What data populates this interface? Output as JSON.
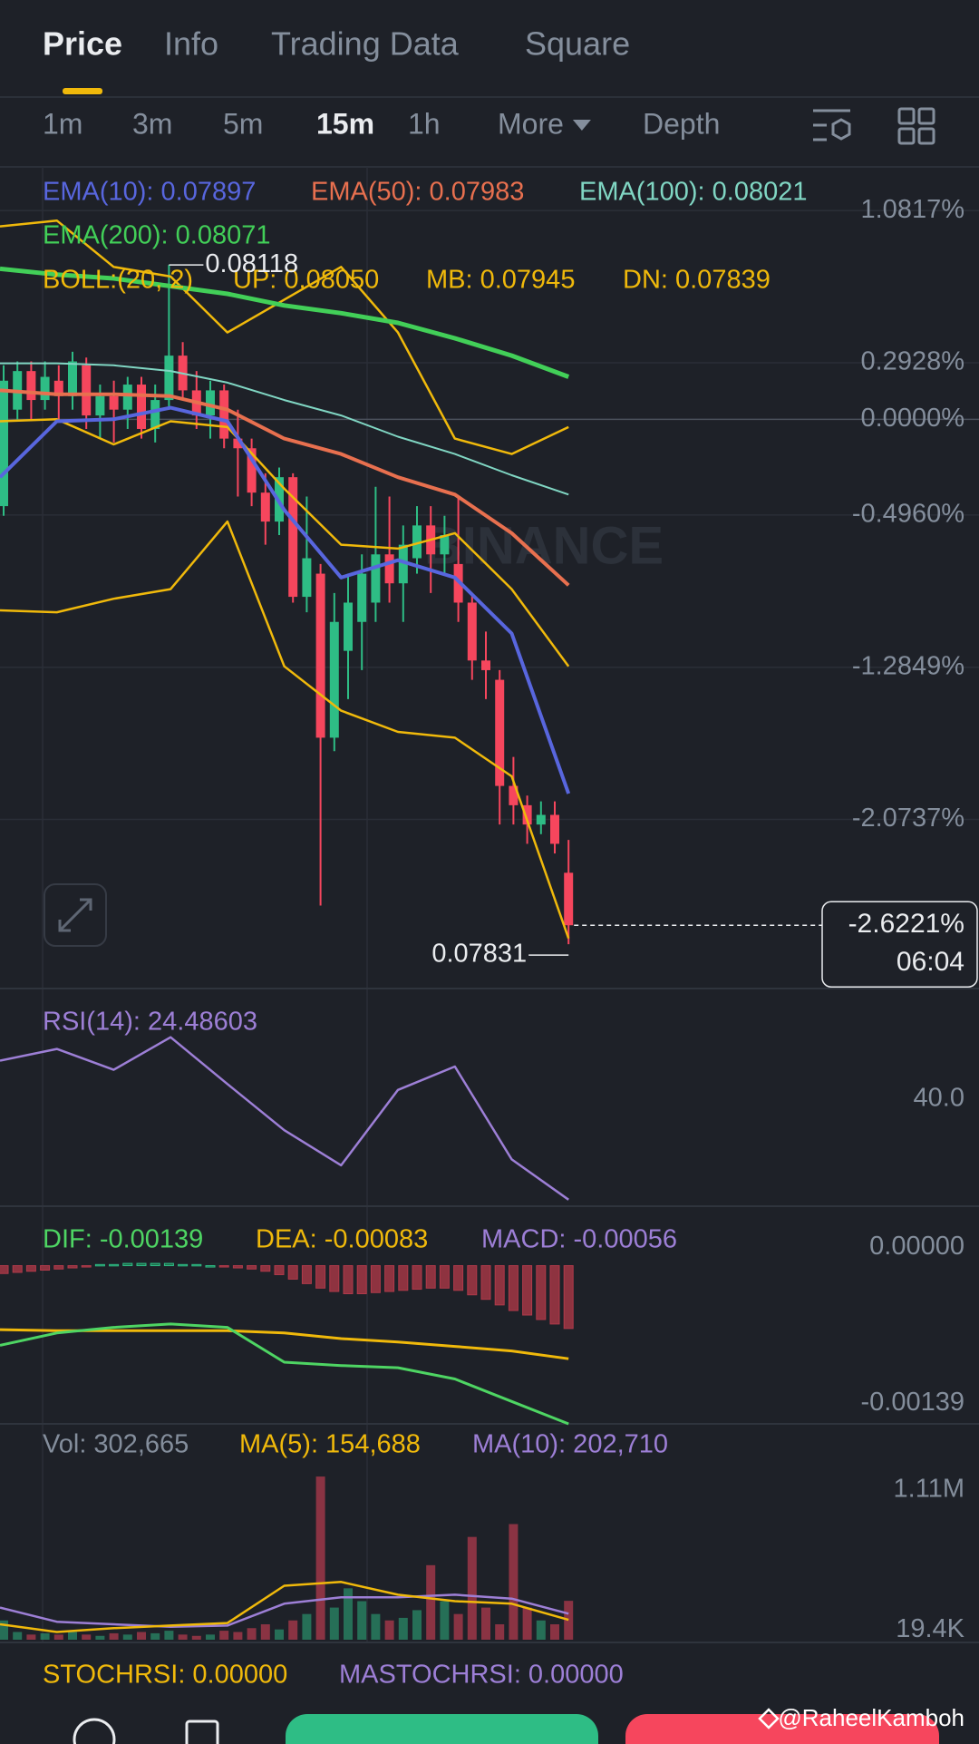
{
  "tabs": {
    "items": [
      "Price",
      "Info",
      "Trading Data",
      "Square"
    ],
    "active": 0
  },
  "intervals": {
    "items": [
      "1m",
      "3m",
      "5m",
      "15m",
      "1h",
      "More",
      "Depth"
    ],
    "active": 3
  },
  "price_panel": {
    "ylim": [
      -2.95,
      1.28
    ],
    "yticks": [
      {
        "value": 1.0817,
        "label": "1.0817%"
      },
      {
        "value": 0.2928,
        "label": "0.2928%"
      },
      {
        "value": 0,
        "label": "0.0000%"
      },
      {
        "value": -0.496,
        "label": "-0.4960%"
      },
      {
        "value": -1.2849,
        "label": "-1.2849%"
      },
      {
        "value": -2.0737,
        "label": "-2.0737%"
      }
    ],
    "candles": {
      "up_color": "#2ebd85",
      "down_color": "#f6465d",
      "open": [
        -0.45,
        0.05,
        0.25,
        0.1,
        0.2,
        0.12,
        0.28,
        0.02,
        0.12,
        0.05,
        0.18,
        -0.05,
        0.1,
        0.33,
        0.15,
        0.02,
        0.15,
        -0.1,
        -0.15,
        -0.38,
        -0.53,
        -0.3,
        -0.92,
        -0.8,
        -1.65,
        -1.2,
        -1.05,
        -0.95,
        -0.7,
        -0.85,
        -0.72,
        -0.55,
        -0.7,
        -0.75,
        -0.95,
        -1.25,
        -1.35,
        -1.9,
        -2.0,
        -2.1,
        -2.05,
        -2.35
      ],
      "high": [
        0.28,
        0.3,
        0.3,
        0.3,
        0.28,
        0.35,
        0.32,
        0.18,
        0.2,
        0.22,
        0.22,
        0.18,
        0.8,
        0.4,
        0.25,
        0.2,
        0.18,
        0.05,
        -0.1,
        -0.28,
        -0.25,
        -0.28,
        -0.4,
        -0.75,
        -0.9,
        -0.8,
        -0.7,
        -0.35,
        -0.4,
        -0.55,
        -0.45,
        -0.45,
        -0.5,
        -0.4,
        -0.9,
        -1.1,
        -1.3,
        -1.75,
        -1.95,
        -1.98,
        -1.98,
        -2.18
      ],
      "low": [
        -0.5,
        0.0,
        0.0,
        0.05,
        0.0,
        0.05,
        -0.05,
        -0.1,
        -0.12,
        -0.05,
        -0.1,
        -0.12,
        0.05,
        0.1,
        -0.05,
        -0.1,
        -0.15,
        -0.4,
        -0.45,
        -0.65,
        -0.6,
        -0.95,
        -1.0,
        -2.52,
        -1.72,
        -1.45,
        -1.3,
        -1.05,
        -0.95,
        -1.05,
        -0.8,
        -0.9,
        -0.8,
        -1.05,
        -1.35,
        -1.45,
        -2.1,
        -2.1,
        -2.2,
        -2.15,
        -2.25,
        -2.72
      ],
      "close": [
        0.2,
        0.25,
        0.1,
        0.22,
        0.12,
        0.3,
        0.02,
        0.12,
        0.05,
        0.18,
        -0.05,
        0.1,
        0.33,
        0.15,
        0.02,
        0.15,
        -0.1,
        -0.15,
        -0.38,
        -0.53,
        -0.3,
        -0.92,
        -0.72,
        -1.65,
        -1.05,
        -0.95,
        -0.8,
        -0.7,
        -0.85,
        -0.65,
        -0.55,
        -0.7,
        -0.6,
        -0.95,
        -1.25,
        -1.3,
        -1.9,
        -2.0,
        -2.1,
        -2.05,
        -2.2,
        -2.6221
      ]
    },
    "ema": [
      {
        "label": "EMA(10): 0.07897",
        "color": "#5866de",
        "width": 4,
        "values": [
          -0.3,
          -0.01,
          0,
          0.06,
          -0.01,
          -0.47,
          -0.82,
          -0.73,
          -0.82,
          -1.11,
          -1.94
        ]
      },
      {
        "label": "EMA(50): 0.07983",
        "color": "#e8704f",
        "width": 4,
        "values": [
          0.15,
          0.13,
          0.13,
          0.12,
          0.05,
          -0.1,
          -0.18,
          -0.3,
          -0.39,
          -0.59,
          -0.86
        ]
      },
      {
        "label": "EMA(100): 0.08021",
        "color": "#80d6c3",
        "width": 2,
        "values": [
          0.29,
          0.29,
          0.28,
          0.25,
          0.19,
          0.1,
          0.02,
          -0.09,
          -0.18,
          -0.29,
          -0.39
        ]
      },
      {
        "label": "EMA(200): 0.08071",
        "color": "#42cf58",
        "width": 5,
        "values": [
          0.78,
          0.75,
          0.73,
          0.69,
          0.65,
          0.59,
          0.55,
          0.5,
          0.42,
          0.33,
          0.22
        ]
      }
    ],
    "boll": {
      "label": "BOLL:(20, 2)",
      "color": "#f0b90b",
      "bands": [
        {
          "label": "UP: 0.08050",
          "values": [
            1.0,
            1.03,
            0.79,
            0.74,
            0.45,
            0.62,
            0.79,
            0.45,
            -0.1,
            -0.18,
            -0.04
          ]
        },
        {
          "label": "MB: 0.07945",
          "values": [
            -0.01,
            0,
            -0.13,
            -0.01,
            -0.04,
            -0.36,
            -0.65,
            -0.67,
            -0.59,
            -0.88,
            -1.28
          ]
        },
        {
          "label": "DN: 0.07839",
          "values": [
            -0.99,
            -1.0,
            -0.93,
            -0.88,
            -0.53,
            -1.28,
            -1.51,
            -1.62,
            -1.65,
            -1.85,
            -2.69
          ]
        }
      ]
    },
    "high_label": "0.08118",
    "low_label": "0.07831",
    "last_price": {
      "value": -2.6221,
      "label": "-2.6221%"
    },
    "countdown": "06:04",
    "watermark": "BINANCE"
  },
  "rsi_panel": {
    "label": "RSI(14): 24.48603",
    "color": "#9d7fd6",
    "ylim": [
      23.5,
      57
    ],
    "yticks": [
      {
        "value": 40,
        "label": "40.0"
      }
    ],
    "values": [
      45.9,
      47.7,
      44.5,
      49.5,
      42.3,
      35.2,
      29.8,
      41.4,
      45.0,
      30.7,
      24.5
    ]
  },
  "macd_panel": {
    "ylim": [
      -0.00141,
      0.00053
    ],
    "yticks": [
      {
        "value": 0,
        "label": "0.00000"
      },
      -0.00139
    ],
    "dif": {
      "label": "DIF: -0.00139",
      "color": "#4ed563",
      "values": [
        -0.00071,
        -0.0006,
        -0.00055,
        -0.00052,
        -0.00055,
        -0.00086,
        -0.00089,
        -0.00091,
        -0.00101,
        -0.00121,
        -0.00141
      ]
    },
    "dea": {
      "label": "DEA: -0.00083",
      "color": "#f0b90b",
      "values": [
        -0.00057,
        -0.00058,
        -0.00058,
        -0.00058,
        -0.00058,
        -0.0006,
        -0.00065,
        -0.00068,
        -0.00072,
        -0.00076,
        -0.00083
      ]
    },
    "macd": {
      "label": "MACD: -0.00056",
      "color": "#9d7fd6",
      "values": [
        -7e-05,
        -6e-05,
        -5e-05,
        -4e-05,
        -3e-05,
        -2e-05,
        -1e-05,
        1e-05,
        1e-05,
        2e-05,
        2e-05,
        2e-05,
        2e-05,
        1e-05,
        1e-05,
        0,
        -1e-05,
        -2e-05,
        -3e-05,
        -5e-05,
        -8e-05,
        -0.00012,
        -0.00016,
        -0.0002,
        -0.00023,
        -0.00025,
        -0.00025,
        -0.00024,
        -0.00023,
        -0.00022,
        -0.00021,
        -0.0002,
        -0.0002,
        -0.00022,
        -0.00026,
        -0.0003,
        -0.00035,
        -0.0004,
        -0.00044,
        -0.00048,
        -0.00052,
        -0.00056
      ]
    }
  },
  "volume_panel": {
    "label": "Vol: 302,665",
    "ylim": [
      0,
      1680000
    ],
    "yticks": [
      {
        "value": 1110000,
        "label": "1.11M"
      },
      {
        "value": 19400,
        "label": "19.4K"
      }
    ],
    "values": [
      150000,
      60000,
      40000,
      50000,
      40000,
      60000,
      40000,
      30000,
      50000,
      40000,
      60000,
      50000,
      70000,
      40000,
      30000,
      40000,
      70000,
      60000,
      90000,
      120000,
      80000,
      150000,
      200000,
      1270000,
      250000,
      400000,
      300000,
      200000,
      150000,
      170000,
      230000,
      580000,
      300000,
      200000,
      800000,
      250000,
      120000,
      900000,
      250000,
      150000,
      120000,
      302665
    ],
    "ma5": {
      "label": "MA(5): 154,688",
      "color": "#f0b90b",
      "values": [
        120000,
        60000,
        90000,
        110000,
        130000,
        420000,
        450000,
        350000,
        300000,
        280000,
        154688
      ]
    },
    "ma10": {
      "label": "MA(10): 202,710",
      "color": "#9d7fd6",
      "values": [
        250000,
        140000,
        120000,
        100000,
        110000,
        280000,
        330000,
        330000,
        350000,
        320000,
        202710
      ]
    }
  },
  "stochrsi": {
    "stochrsi": "STOCHRSI: 0.00000",
    "mastochrsi": "MASTOCHRSI: 0.00000"
  },
  "credit": "@RaheelKamboh"
}
